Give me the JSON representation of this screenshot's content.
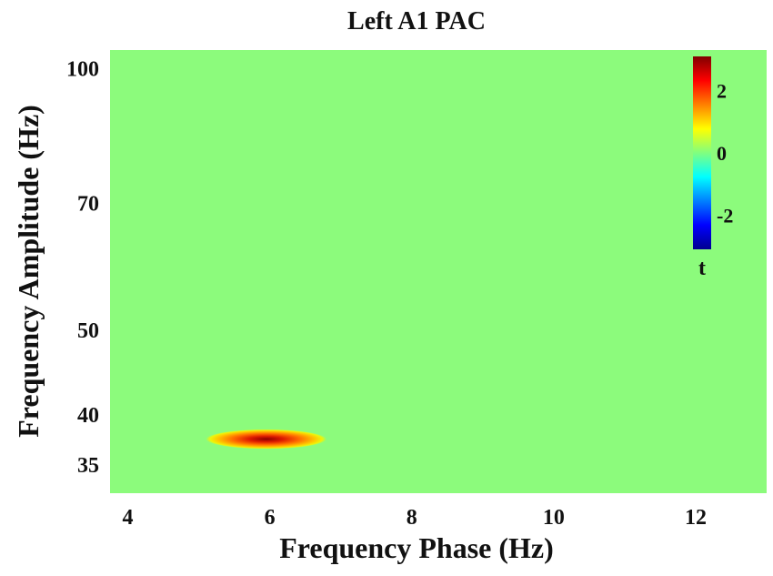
{
  "chart_data": {
    "type": "heatmap",
    "title": "Left A1 PAC",
    "xlabel": "Frequency Phase (Hz)",
    "ylabel": "Frequency Amplitude (Hz)",
    "x_ticks": [
      4,
      6,
      8,
      10,
      12
    ],
    "x_tick_labels": [
      "4",
      "6",
      "8",
      "10",
      "12"
    ],
    "xlim": [
      3.75,
      13.0
    ],
    "y_ticks": [
      35,
      40,
      50,
      70,
      100
    ],
    "y_tick_labels": [
      "35",
      "40",
      "50",
      "70",
      "100"
    ],
    "ylim": [
      32.5,
      105
    ],
    "y_scale": "log",
    "background_value": 0,
    "blobs": [
      {
        "x_center": 5.95,
        "x_halfwidth": 0.85,
        "y_center": 37.5,
        "y_halfwidth_log": 0.026,
        "peak_t": 3.1
      }
    ],
    "colorbar": {
      "label": "t",
      "ticks": [
        2,
        0,
        -2
      ],
      "tick_labels": [
        "2",
        "0",
        "-2"
      ],
      "range": [
        -3.1,
        3.1
      ],
      "colormap": "jet",
      "placement": "top-right"
    },
    "colors": {
      "background": "#8cfb7c",
      "jet": [
        "#00008f",
        "#0000ff",
        "#0080ff",
        "#00ffff",
        "#80ff80",
        "#ffff00",
        "#ff8000",
        "#ff0000",
        "#800000"
      ]
    }
  }
}
